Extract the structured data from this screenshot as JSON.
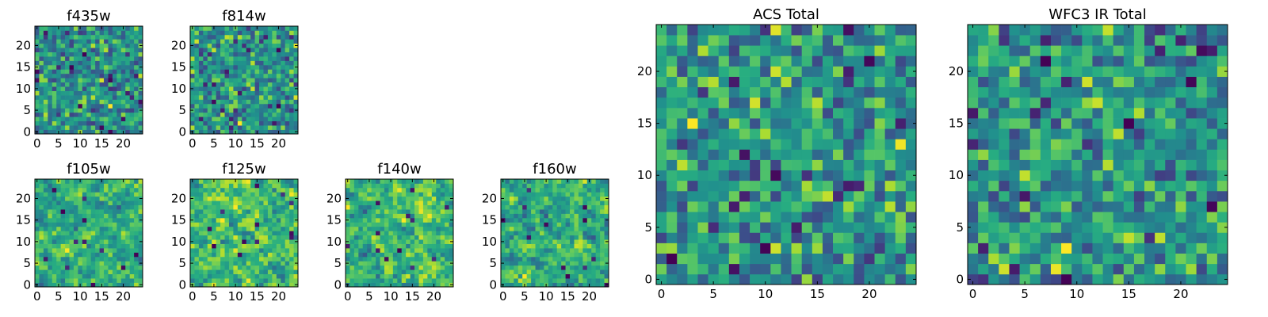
{
  "chart_data": [
    {
      "type": "heatmap",
      "title": "f435w",
      "xticks": [
        "0",
        "5",
        "10",
        "15",
        "20"
      ],
      "yticks": [
        "0",
        "5",
        "10",
        "15",
        "20"
      ],
      "xlim": [
        -0.5,
        24.5
      ],
      "ylim": [
        -0.5,
        24.5
      ],
      "grid_size": [
        25,
        25
      ],
      "colormap": "viridis",
      "seed": 11,
      "smooth": 0
    },
    {
      "type": "heatmap",
      "title": "f814w",
      "xticks": [
        "0",
        "5",
        "10",
        "15",
        "20"
      ],
      "yticks": [
        "0",
        "5",
        "10",
        "15",
        "20"
      ],
      "xlim": [
        -0.5,
        24.5
      ],
      "ylim": [
        -0.5,
        24.5
      ],
      "grid_size": [
        25,
        25
      ],
      "colormap": "viridis",
      "seed": 23,
      "smooth": 0
    },
    {
      "type": "heatmap",
      "title": "f105w",
      "xticks": [
        "0",
        "5",
        "10",
        "15",
        "20"
      ],
      "yticks": [
        "0",
        "5",
        "10",
        "15",
        "20"
      ],
      "xlim": [
        -0.5,
        24.5
      ],
      "ylim": [
        -0.5,
        24.5
      ],
      "grid_size": [
        25,
        25
      ],
      "colormap": "viridis",
      "seed": 37,
      "smooth": 1
    },
    {
      "type": "heatmap",
      "title": "f125w",
      "xticks": [
        "0",
        "5",
        "10",
        "15",
        "20"
      ],
      "yticks": [
        "0",
        "5",
        "10",
        "15",
        "20"
      ],
      "xlim": [
        -0.5,
        24.5
      ],
      "ylim": [
        -0.5,
        24.5
      ],
      "grid_size": [
        25,
        25
      ],
      "colormap": "viridis",
      "seed": 41,
      "smooth": 1
    },
    {
      "type": "heatmap",
      "title": "f140w",
      "xticks": [
        "0",
        "5",
        "10",
        "15",
        "20"
      ],
      "yticks": [
        "0",
        "5",
        "10",
        "15",
        "20"
      ],
      "xlim": [
        -0.5,
        24.5
      ],
      "ylim": [
        -0.5,
        24.5
      ],
      "grid_size": [
        25,
        25
      ],
      "colormap": "viridis",
      "seed": 53,
      "smooth": 1
    },
    {
      "type": "heatmap",
      "title": "f160w",
      "xticks": [
        "0",
        "5",
        "10",
        "15",
        "20"
      ],
      "yticks": [
        "0",
        "5",
        "10",
        "15",
        "20"
      ],
      "xlim": [
        -0.5,
        24.5
      ],
      "ylim": [
        -0.5,
        24.5
      ],
      "grid_size": [
        25,
        25
      ],
      "colormap": "viridis",
      "seed": 67,
      "smooth": 1
    },
    {
      "type": "heatmap",
      "title": "ACS Total",
      "xticks": [
        "0",
        "5",
        "10",
        "15",
        "20"
      ],
      "yticks": [
        "0",
        "5",
        "10",
        "15",
        "20"
      ],
      "xlim": [
        -0.5,
        24.5
      ],
      "ylim": [
        -0.5,
        24.5
      ],
      "grid_size": [
        25,
        25
      ],
      "colormap": "viridis",
      "seed": 79,
      "smooth": 0
    },
    {
      "type": "heatmap",
      "title": "WFC3 IR Total",
      "xticks": [
        "0",
        "5",
        "10",
        "15",
        "20"
      ],
      "yticks": [
        "0",
        "5",
        "10",
        "15",
        "20"
      ],
      "xlim": [
        -0.5,
        24.5
      ],
      "ylim": [
        -0.5,
        24.5
      ],
      "grid_size": [
        25,
        25
      ],
      "colormap": "viridis",
      "seed": 97,
      "smooth": 0
    }
  ]
}
